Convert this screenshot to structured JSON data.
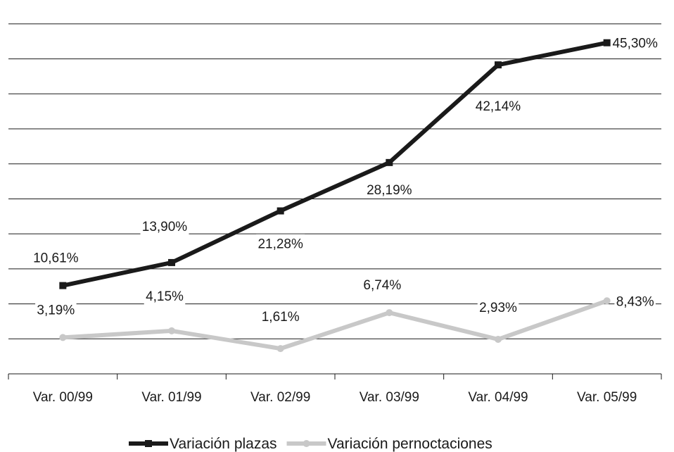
{
  "chart_data": {
    "type": "line",
    "categories": [
      "Var. 00/99",
      "Var. 01/99",
      "Var. 02/99",
      "Var. 03/99",
      "Var. 04/99",
      "Var. 05/99"
    ],
    "series": [
      {
        "name": "Variación plazas",
        "color": "#1a1a1a",
        "marker": "square",
        "values": [
          10.61,
          13.9,
          21.28,
          28.19,
          42.14,
          45.3
        ],
        "labels": [
          "10,61%",
          "13,90%",
          "21,28%",
          "28,19%",
          "42,14%",
          "45,30%"
        ]
      },
      {
        "name": "Variación pernoctaciones",
        "color": "#c8c8c8",
        "marker": "circle",
        "values": [
          3.19,
          4.15,
          1.61,
          6.74,
          2.93,
          8.43
        ],
        "labels": [
          "3,19%",
          "4,15%",
          "1,61%",
          "6,74%",
          "2,93%",
          "8,43%"
        ]
      }
    ],
    "ylim": [
      -2,
      50
    ],
    "grid": true,
    "legend": "bottom",
    "title": "",
    "xlabel": "",
    "ylabel": ""
  }
}
